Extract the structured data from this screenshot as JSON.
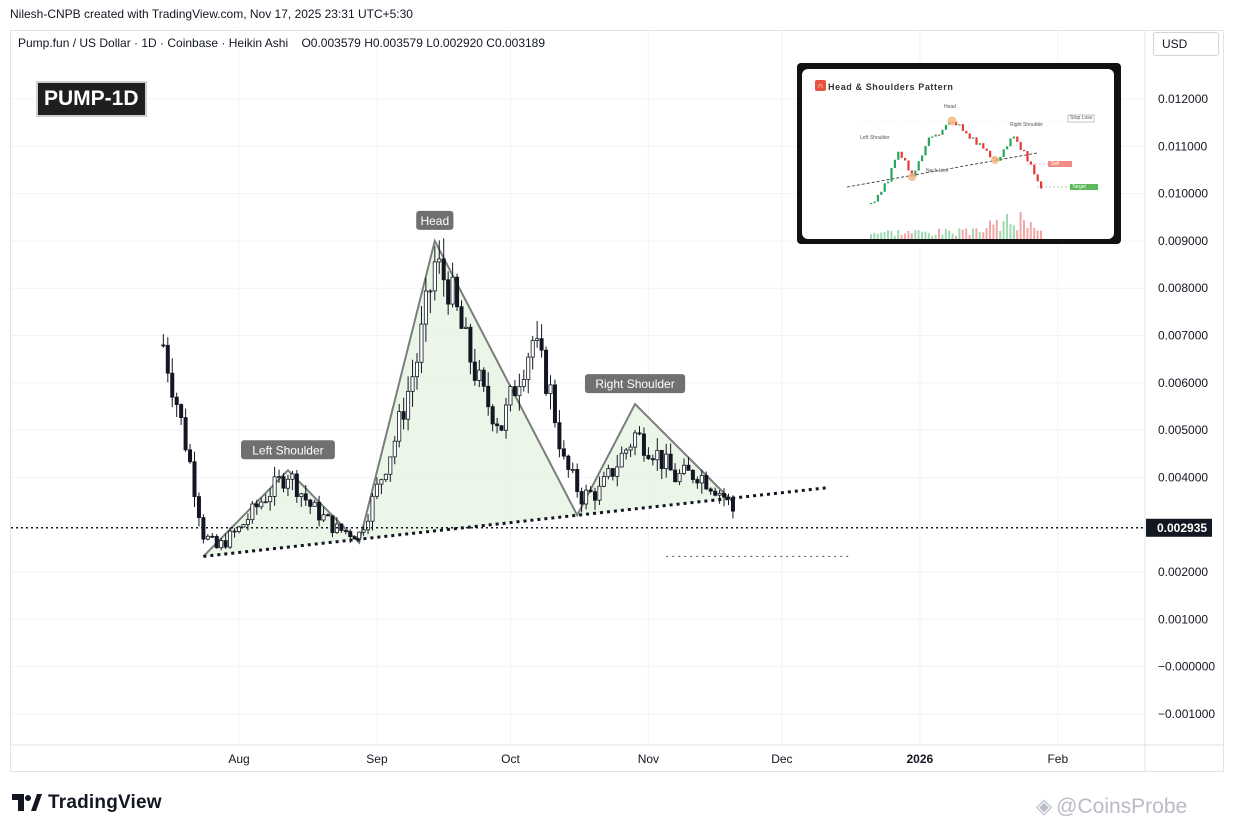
{
  "header": {
    "creator": "Nilesh-CNPB created with TradingView.com, Nov 17, 2025 23:31 UTC+5:30",
    "symbol_line": "Pump.fun / US Dollar · 1D · Coinbase · Heikin Ashi",
    "ohlc": "O0.003579 H0.003579 L0.002920 C0.003189",
    "currency": "USD"
  },
  "badge": {
    "ticker": "PUMP-1D"
  },
  "chart_data": {
    "type": "candlestick",
    "style": "Heikin Ashi",
    "x_ticks": [
      "Aug",
      "Sep",
      "Oct",
      "Nov",
      "Dec",
      "2026",
      "Feb"
    ],
    "y_ticks": [
      0.012,
      0.011,
      0.01,
      0.009,
      0.008,
      0.007,
      0.006,
      0.005,
      0.004,
      0.003,
      0.002,
      0.001,
      0.0,
      -0.001
    ],
    "y_tick_labels": [
      "0.012000",
      "0.011000",
      "0.010000",
      "0.009000",
      "0.008000",
      "0.007000",
      "0.006000",
      "0.005000",
      "0.004000",
      "0.003000",
      "0.002000",
      "0.001000",
      "−0.000000",
      "−0.001000"
    ],
    "ylim": [
      -0.00145,
      0.0128
    ],
    "last_price": 0.002935,
    "last_price_label": "0.002935",
    "pattern_annotations": [
      {
        "label": "Left Shoulder",
        "price": 0.00415
      },
      {
        "label": "Head",
        "price": 0.009
      },
      {
        "label": "Right Shoulder",
        "price": 0.00555
      }
    ],
    "neckline": {
      "from_price": 0.00233,
      "to_price": 0.00378
    },
    "target_line_price": 0.00233,
    "grid": true
  },
  "inset": {
    "title": "Head & Shoulders Pattern",
    "labels": {
      "head": "Head",
      "left_shoulder": "Left Shoulder",
      "right_shoulder": "Right Shoulder",
      "neckline": "Neck Line",
      "stop_loss": "Stop Loss",
      "sell": "Sell",
      "target": "Target"
    }
  },
  "footer": {
    "brand": "TradingView",
    "watermark": "@CoinsProbe"
  },
  "colors": {
    "candle": "#131722",
    "pattern_fill": "#e8f5e4",
    "pattern_line": "#7a7f7a",
    "label_bg": "#707070"
  }
}
